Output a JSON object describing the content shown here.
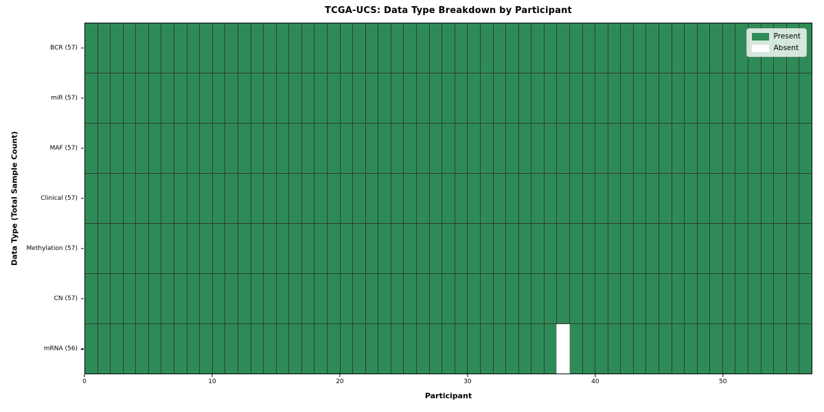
{
  "chart_data": {
    "type": "heatmap",
    "title": "TCGA-UCS: Data Type Breakdown by Participant",
    "xlabel": "Participant",
    "ylabel": "Data Type (Total Sample Count)",
    "x_ticks": [
      0,
      10,
      20,
      30,
      40,
      50
    ],
    "x_range": [
      0,
      57
    ],
    "n_participants": 57,
    "rows": [
      {
        "label": "BCR (57)",
        "data_type": "BCR",
        "present_count": 57,
        "absent_participants": []
      },
      {
        "label": "miR (57)",
        "data_type": "miR",
        "present_count": 57,
        "absent_participants": []
      },
      {
        "label": "MAF (57)",
        "data_type": "MAF",
        "present_count": 57,
        "absent_participants": []
      },
      {
        "label": "Clinical (57)",
        "data_type": "Clinical",
        "present_count": 57,
        "absent_participants": []
      },
      {
        "label": "Methylation (57)",
        "data_type": "Methylation",
        "present_count": 57,
        "absent_participants": []
      },
      {
        "label": "CN (57)",
        "data_type": "CN",
        "present_count": 57,
        "absent_participants": []
      },
      {
        "label": "mRNA (56)",
        "data_type": "mRNA",
        "present_count": 56,
        "absent_participants": [
          37
        ]
      }
    ],
    "legend": {
      "position": "upper-right",
      "entries": [
        {
          "label": "Present",
          "color": "#2e8b57"
        },
        {
          "label": "Absent",
          "color": "#ffffff"
        }
      ]
    },
    "colors": {
      "present": "#2e8b57",
      "absent": "#ffffff",
      "grid_line": "#2f3d33",
      "absent_edge": "#c4c4c4",
      "spine": "#000000",
      "background": "#ffffff"
    },
    "grid": true
  }
}
